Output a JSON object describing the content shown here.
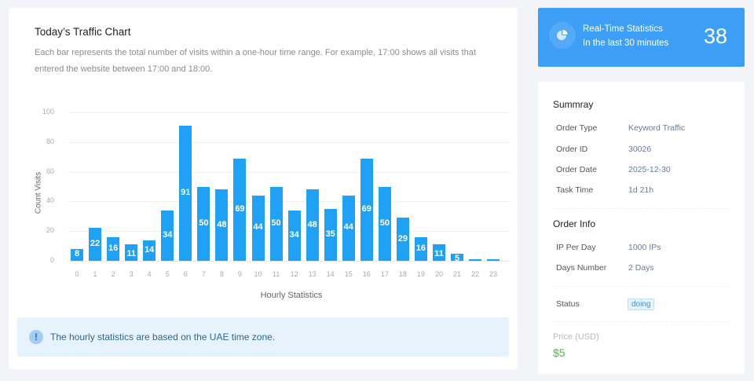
{
  "chart_card": {
    "title": "Today’s Traffic Chart",
    "description": "Each bar represents the total number of visits within a one-hour time range. For example, 17:00 shows all visits that entered the website between 17:00 and 18:00.",
    "notice": "The hourly statistics are based on the UAE time zone.",
    "notice_icon": "!"
  },
  "chart_data": {
    "type": "bar",
    "title": "Today’s Traffic Chart",
    "xlabel": "Hourly Statistics",
    "ylabel": "Count Visits",
    "ylim": [
      0,
      100
    ],
    "yticks": [
      "0",
      "20",
      "40",
      "60",
      "80",
      "100"
    ],
    "grid": true,
    "legend": "none",
    "bar_color": "#1fa2f5",
    "categories": [
      "0",
      "1",
      "2",
      "3",
      "4",
      "5",
      "6",
      "7",
      "8",
      "9",
      "10",
      "11",
      "12",
      "13",
      "14",
      "15",
      "16",
      "17",
      "18",
      "19",
      "20",
      "21",
      "22",
      "23"
    ],
    "values": [
      8,
      22,
      16,
      11,
      14,
      34,
      91,
      50,
      48,
      69,
      44,
      50,
      34,
      48,
      35,
      44,
      69,
      50,
      29,
      16,
      11,
      5,
      1,
      1
    ],
    "data_labels": [
      "8",
      "22",
      "16",
      "11",
      "14",
      "34",
      "91",
      "50",
      "48",
      "69",
      "44",
      "50",
      "34",
      "48",
      "35",
      "44",
      "69",
      "50",
      "29",
      "16",
      "11",
      "5",
      "",
      ""
    ]
  },
  "realtime": {
    "title": "Real-Time Statistics",
    "subtitle": "In the last 30 minutes",
    "count": "38",
    "icon": "pie-chart-icon",
    "color": "#3d9ff5"
  },
  "summary": {
    "title": "Summray",
    "rows": [
      {
        "label": "Order Type",
        "value": "Keyword Traffic"
      },
      {
        "label": "Order ID",
        "value": "30026"
      },
      {
        "label": "Order Date",
        "value": "2025-12-30"
      },
      {
        "label": "Task Time",
        "value": "1d 21h"
      }
    ]
  },
  "order_info": {
    "title": "Order Info",
    "rows": [
      {
        "label": "IP Per Day",
        "value": "1000 IPs"
      },
      {
        "label": "Days Number",
        "value": "2 Days"
      }
    ],
    "status_label": "Status",
    "status_value": "doing",
    "price_label": "Price (USD)",
    "price_value": "$5",
    "price_color": "#4cb847"
  }
}
